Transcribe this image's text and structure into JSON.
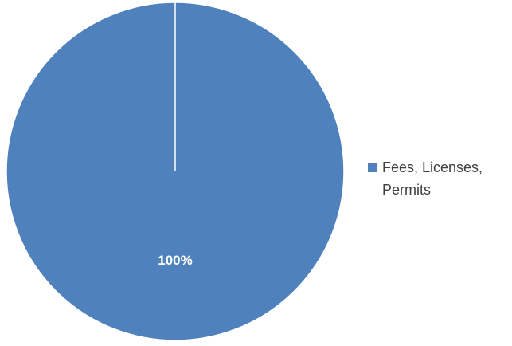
{
  "chart_data": {
    "type": "pie",
    "categories": [
      "Fees, Licenses, Permits"
    ],
    "values": [
      100
    ],
    "data_labels": [
      "100%"
    ],
    "colors": [
      "#4f81bd"
    ],
    "legend_position": "right"
  }
}
